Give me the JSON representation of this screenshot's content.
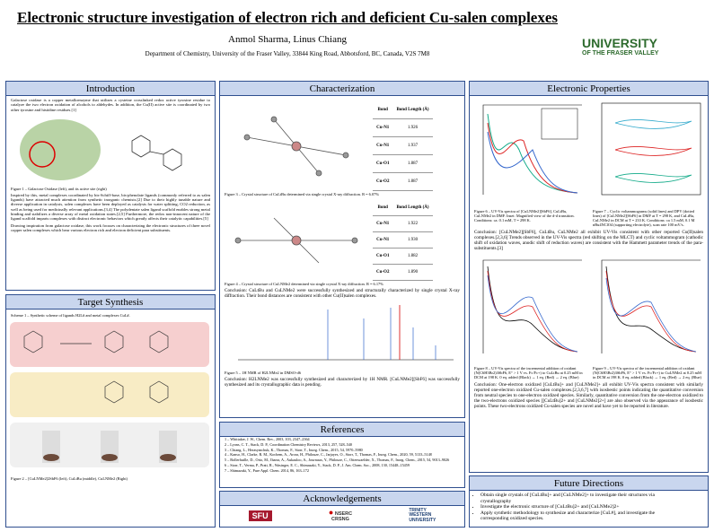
{
  "header": {
    "title": "Electronic structure investigation of electron rich and deficient Cu-salen complexes",
    "authors": "Anmol Sharma, Linus Chiang",
    "affiliation": "Department of Chemistry, University of the Fraser Valley, 33844 King Road, Abbotsford, BC, Canada, V2S 7M8",
    "logo": [
      "UNIVERSITY",
      "OF THE FRASER VALLEY"
    ]
  },
  "introduction": {
    "heading": "Introduction",
    "paragraphs": [
      "Galactose oxidase is a copper metalloenzyme that utilizes a cysteine crosslinked redox active tyrosine residue to catalyze the two electron oxidation of alcohols to aldehydes. In addition, the Cu(II) active site is coordinated by two other tyrosine and histidine residues.[1]",
      "Inspired by this, metal complexes coordinated by bis-Schiff-base, bis-phenolate ligands (commonly referred to as salen ligands) have attracted much attention from synthetic inorganic chemists.[2] Due to their highly tunable nature and diverse application in catalysis, salen complexes have been deployed as catalysts for water splitting, CO2 reduction, as well as being used for medicinally relevant applications.[3,4] The polydentate salen ligand scaffold enables strong metal binding and stabilizes a diverse array of metal oxidation states.[2,5] Furthermore, the redox non-innocent nature of the ligand scaffold imparts complexes with distinct electronic behaviors which greatly affects their catalytic capabilities.[5]",
      "Drawing inspiration from galactose oxidase, this work focuses on characterizing the electronic structures of three novel copper salen complexes which bear various electron rich and electron deficient para substituents."
    ],
    "figure_caption": "Figure 1 – Galactose Oxidase (left), and its active site (right)"
  },
  "synthesis": {
    "heading": "Target Synthesis",
    "scheme_caption": "Scheme 1 – Synthetic scheme of ligands H2L# and metal complexes CuL#.",
    "figure_caption": "Figure 2 – [CuLNMe2]2SbF6 (left), CuLtBu (middle), CuLNMe2 (Right)"
  },
  "characterization": {
    "heading": "Characterization",
    "tables": [
      {
        "headers": [
          "Bond",
          "Bond Length (Å)"
        ],
        "rows": [
          [
            "Cu-N1",
            "1.926"
          ],
          [
            "Cu-N1",
            "1.937"
          ],
          [
            "Cu-O1",
            "1.887"
          ],
          [
            "Cu-O2",
            "1.887"
          ]
        ]
      },
      {
        "headers": [
          "Bond",
          "Bond Length (Å)"
        ],
        "rows": [
          [
            "Cu-N1",
            "1.922"
          ],
          [
            "Cu-N1",
            "1.930"
          ],
          [
            "Cu-O1",
            "1.882"
          ],
          [
            "Cu-O2",
            "1.890"
          ]
        ]
      }
    ],
    "fig3": "Figure 3 – Crystal structure of CuLtBu determined via single crystal X-ray diffraction. R = 6.07%",
    "fig4": "Figure 4 – Crystal structure of CuLNMe2 determined via single crystal X-ray diffraction. R = 6.17%",
    "conclusion1": "Conclusion: CuLtBu and CuLNMe2 were successfully synthesized and structurally characterized by single crystal X-ray diffraction. Their bond distances are consistent with other Cu(II)salen complexes.",
    "fig5": "Figure 5 – 1H NMR of H2LNMe2 in DMSO-d6",
    "conclusion2": "Conclusion: H2LNMe2 was successfully synthesized and characterized by 1H NMR. [CuLNMe2][SbF6] was successfully synthesized and its crystallographic data is pending."
  },
  "references": {
    "heading": "References",
    "items": [
      "1 – Whittaker, J. W., Chem. Rev., 2003, 103, 2347–2364",
      "2 – Lyons, C. T., Stack, D. P., Coordination Chemistry Reviews, 2013, 257, 528–540",
      "3 – Chiang, L., Herasymchuk, K., Thomas, F., Storr, T., Inorg. Chem., 2015, 54, 5970–5980",
      "4 – Kanso, H., Clarke, R. M., Kochem, A., Arora, H., Philouze, C., Jarjayes, O., Storr, T., Thomas, F., Inorg. Chem., 2020, 59, 5133–5148",
      "5 – Bollerhuille, D., Orio, M., Ibarra, A., Aukauloo, A., Journaux, Y., Philouze, C., Ottenwaelder, X., Thomas, F., Inorg. Chem., 2015, 54, 9013–9026",
      "6 – Storr, T., Verma, P., Pratt, R., Wasinger, E. C., Shimazaki, Y., Stack, D. P., J. Am. Chem. Soc., 2008, 130, 15448–15459",
      "7 – Shimazaki, Y., Pure Appl. Chem. 2014, 86, 163–172"
    ]
  },
  "acknowledgements": {
    "heading": "Acknowledgements",
    "logos": [
      "SFU",
      "NSERC",
      "CRSNG",
      "TRINITY",
      "WESTERN",
      "UNIVERSITY"
    ]
  },
  "electronic": {
    "heading": "Electronic Properties",
    "fig6": "Figure 6 – UV-Vis spectra of [CuLNMe2][SbF6], CuLtBu, CuLNMe2 in DMF. Inset: Magnified view of the d-d transition. Conditions: ca. 0.1 mM, T = 298 K.",
    "fig7": "Figure 7 – Cyclic voltammograms (solid lines) and DPV (dotted lines) of [CuLNMe2][SbF6] in DMF at T = 298 K, and CuLtBu, CuLNMe2 in DCM at T = 233 K. Conditions: ca 1.5 mM, 0.1 M nBu4NClO4 (supporting electrolyte), scan rate 100 mV/s.",
    "conclusion1": "Conclusion: [CuLNMe2][SbF6], CuLtBu, CuLNMe2 all exhibit UV-Vis consistent with other reported Cu(II)salen complexes.[2,3,6] Trends observed in the UV-Vis spectra (red shifting on the MLCT) and cyclic voltammogram (cathodic shift of oxidation waves, anodic shift of reduction waves) are consistent with the Hammett parameter trends of the para-substituents.[3]",
    "fig8": "Figure 8 – UV-Vis spectra of the incremental addition of oxidant (N(C6H3Br2)3SbF6, E° > 1 V vs. Fc/Fc+) to CuLtBu at 0.25 mM in DCM at 198 K. 0 eq. added (Black) → 1 eq. (Red) → 2 eq. (Blue)",
    "fig9": "Figure 9 – UV-Vis spectra of the incremental addition of oxidant (N(C6H3Br2)3SbF6, E° > 1 V vs. Fc/Fc+) to CuLNMe2 at 0.25 mM in DCM at 198 K. 0 eq. added (Black) → 1 eq. (Red) → 2 eq. (Blue)",
    "conclusion2": "Conclusion: One-electron oxidized [CuLtBu]+ and [CuLNMe2]+ all exhibit UV-Vis spectra consistent with similarly reported one-electron oxidized Cu-salen complexes.[2,3,6,7] with isosbestic points indicating the quantitative conversion from neutral species to one-electron oxidized species. Similarly, quantitative conversion from the one-electron oxidized to the two-electrons oxidized species [[CuLtBu]2+ and [CuLNMe2]2+] are also observed via the appearance of isosbestic points. These two-electrons oxidized Cu-salen species are novel and have yet to be reported in literature."
  },
  "future": {
    "heading": "Future Directions",
    "items": [
      "Obtain single crystals of [CuLtBu]+ and [CuLNMe2]+ to investigate their structures via crystallography",
      "Investigate the electronic structure of [CuLtBu]2+ and [CuLNMe2]2+",
      "Apply synthetic methodology to synthesize and characterize [CuL#], and investigate the corresponding oxidized species."
    ]
  }
}
